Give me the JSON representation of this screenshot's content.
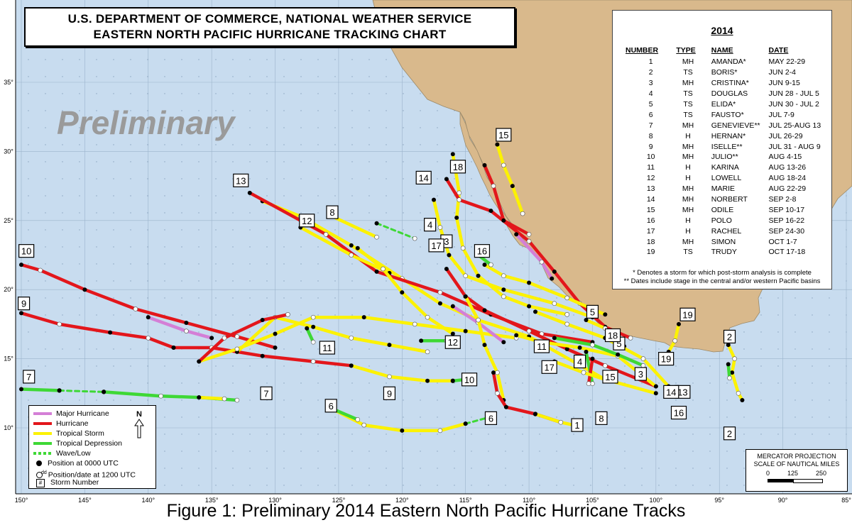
{
  "header": {
    "line1": "U.S. DEPARTMENT OF COMMERCE, NATIONAL WEATHER SERVICE",
    "line2": "EASTERN NORTH PACIFIC HURRICANE TRACKING CHART"
  },
  "watermark": "Preliminary",
  "caption": "Figure 1: Preliminary 2014 Eastern North Pacific Hurricane Tracks",
  "colors": {
    "ocean": "#c8dcef",
    "land": "#d9b98c",
    "major_hurricane": "#d47fd6",
    "hurricane": "#e3161b",
    "tropical_storm": "#fcf200",
    "tropical_depression": "#3ed835",
    "wave_low": "#3ed835",
    "grid": "#8aa4bf"
  },
  "axes": {
    "lon_labels": [
      "150°",
      "145°",
      "140°",
      "135°",
      "130°",
      "125°",
      "120°",
      "115°",
      "110°",
      "105°",
      "100°",
      "95°",
      "90°",
      "85°"
    ],
    "lat_labels": [
      "10°",
      "15°",
      "20°",
      "25°",
      "30°",
      "35°"
    ]
  },
  "table": {
    "year": "2014",
    "headers": [
      "NUMBER",
      "TYPE",
      "NAME",
      "DATE"
    ],
    "rows": [
      {
        "num": "1",
        "type": "MH",
        "name": "AMANDA*",
        "date": "MAY 22-29"
      },
      {
        "num": "2",
        "type": "TS",
        "name": "BORIS*",
        "date": "JUN  2-4"
      },
      {
        "num": "3",
        "type": "MH",
        "name": "CRISTINA*",
        "date": "JUN  9-15"
      },
      {
        "num": "4",
        "type": "TS",
        "name": "DOUGLAS",
        "date": "JUN 28 - JUL 5"
      },
      {
        "num": "5",
        "type": "TS",
        "name": "ELIDA*",
        "date": "JUN 30 - JUL 2"
      },
      {
        "num": "6",
        "type": "TS",
        "name": "FAUSTO*",
        "date": "JUL  7-9"
      },
      {
        "num": "7",
        "type": "MH",
        "name": "GENEVIEVE**",
        "date": "JUL 25-AUG 13"
      },
      {
        "num": "8",
        "type": "H",
        "name": "HERNAN*",
        "date": "JUL  26-29"
      },
      {
        "num": "9",
        "type": "MH",
        "name": "ISELLE**",
        "date": "JUL 31 - AUG 9"
      },
      {
        "num": "10",
        "type": "MH",
        "name": "JULIO**",
        "date": "AUG  4-15"
      },
      {
        "num": "11",
        "type": "H",
        "name": "KARINA",
        "date": "AUG 13-26"
      },
      {
        "num": "12",
        "type": "H",
        "name": "LOWELL",
        "date": "AUG 18-24"
      },
      {
        "num": "13",
        "type": "MH",
        "name": "MARIE",
        "date": "AUG 22-29"
      },
      {
        "num": "14",
        "type": "MH",
        "name": "NORBERT",
        "date": "SEP  2-8"
      },
      {
        "num": "15",
        "type": "MH",
        "name": "ODILE",
        "date": "SEP 10-17"
      },
      {
        "num": "16",
        "type": "H",
        "name": "POLO",
        "date": "SEP 16-22"
      },
      {
        "num": "17",
        "type": "H",
        "name": "RACHEL",
        "date": "SEP 24-30"
      },
      {
        "num": "18",
        "type": "MH",
        "name": "SIMON",
        "date": "OCT  1-7"
      },
      {
        "num": "19",
        "type": "TS",
        "name": "TRUDY",
        "date": "OCT 17-18"
      }
    ],
    "note1": "* Denotes a storm for which post-storm analysis is complete",
    "note2": "** Dates include stage in the central and/or western Pacific basins"
  },
  "legend": {
    "major_hurricane": "Major Hurricane",
    "hurricane": "Hurricane",
    "tropical_storm": "Tropical Storm",
    "tropical_depression": "Tropical Depression",
    "wave_low": "Wave/Low",
    "pos_0000": "Position at 0000 UTC",
    "pos_1200": "Position/date at 1200 UTC",
    "dd": "dd",
    "storm_number": "Storm Number",
    "storm_number_symbol": "#",
    "north": "N"
  },
  "scale": {
    "line1": "MERCATOR PROJECTION",
    "line2": "SCALE OF NAUTICAL MILES",
    "ticks": [
      "0",
      "125",
      "250"
    ]
  },
  "storm_labels": [
    {
      "n": "1",
      "lon": -106.2,
      "lat": 10.2
    },
    {
      "n": "2",
      "lon": -94.2,
      "lat": 16.6
    },
    {
      "n": "2",
      "lon": -94.2,
      "lat": 9.6
    },
    {
      "n": "3",
      "lon": -116.5,
      "lat": 23.5
    },
    {
      "n": "3",
      "lon": -101.2,
      "lat": 13.9
    },
    {
      "n": "4",
      "lon": -117.8,
      "lat": 24.7
    },
    {
      "n": "4",
      "lon": -106.0,
      "lat": 14.8
    },
    {
      "n": "5",
      "lon": -105.0,
      "lat": 18.4
    },
    {
      "n": "5",
      "lon": -102.9,
      "lat": 16.1
    },
    {
      "n": "6",
      "lon": -125.6,
      "lat": 11.6
    },
    {
      "n": "6",
      "lon": -113.0,
      "lat": 10.7
    },
    {
      "n": "7",
      "lon": -149.4,
      "lat": 13.7
    },
    {
      "n": "7",
      "lon": -130.7,
      "lat": 12.5
    },
    {
      "n": "8",
      "lon": -125.5,
      "lat": 25.6
    },
    {
      "n": "8",
      "lon": -104.3,
      "lat": 10.7
    },
    {
      "n": "9",
      "lon": -149.8,
      "lat": 19.0
    },
    {
      "n": "9",
      "lon": -121.0,
      "lat": 12.5
    },
    {
      "n": "10",
      "lon": -149.6,
      "lat": 22.8
    },
    {
      "n": "10",
      "lon": -114.7,
      "lat": 13.5
    },
    {
      "n": "11",
      "lon": -125.9,
      "lat": 15.8
    },
    {
      "n": "11",
      "lon": -109.0,
      "lat": 15.9
    },
    {
      "n": "12",
      "lon": -127.5,
      "lat": 25.0
    },
    {
      "n": "12",
      "lon": -116.0,
      "lat": 16.2
    },
    {
      "n": "13",
      "lon": -132.7,
      "lat": 27.9
    },
    {
      "n": "13",
      "lon": -97.9,
      "lat": 12.6
    },
    {
      "n": "14",
      "lon": -118.3,
      "lat": 28.1
    },
    {
      "n": "14",
      "lon": -98.8,
      "lat": 12.6
    },
    {
      "n": "15",
      "lon": -112.0,
      "lat": 31.2
    },
    {
      "n": "15",
      "lon": -103.6,
      "lat": 13.7
    },
    {
      "n": "16",
      "lon": -113.7,
      "lat": 22.8
    },
    {
      "n": "16",
      "lon": -98.2,
      "lat": 11.1
    },
    {
      "n": "17",
      "lon": -117.3,
      "lat": 23.2
    },
    {
      "n": "17",
      "lon": -108.4,
      "lat": 14.4
    },
    {
      "n": "18",
      "lon": -115.6,
      "lat": 28.9
    },
    {
      "n": "18",
      "lon": -103.4,
      "lat": 16.7
    },
    {
      "n": "19",
      "lon": -97.5,
      "lat": 18.2
    },
    {
      "n": "19",
      "lon": -99.2,
      "lat": 15.0
    }
  ]
}
